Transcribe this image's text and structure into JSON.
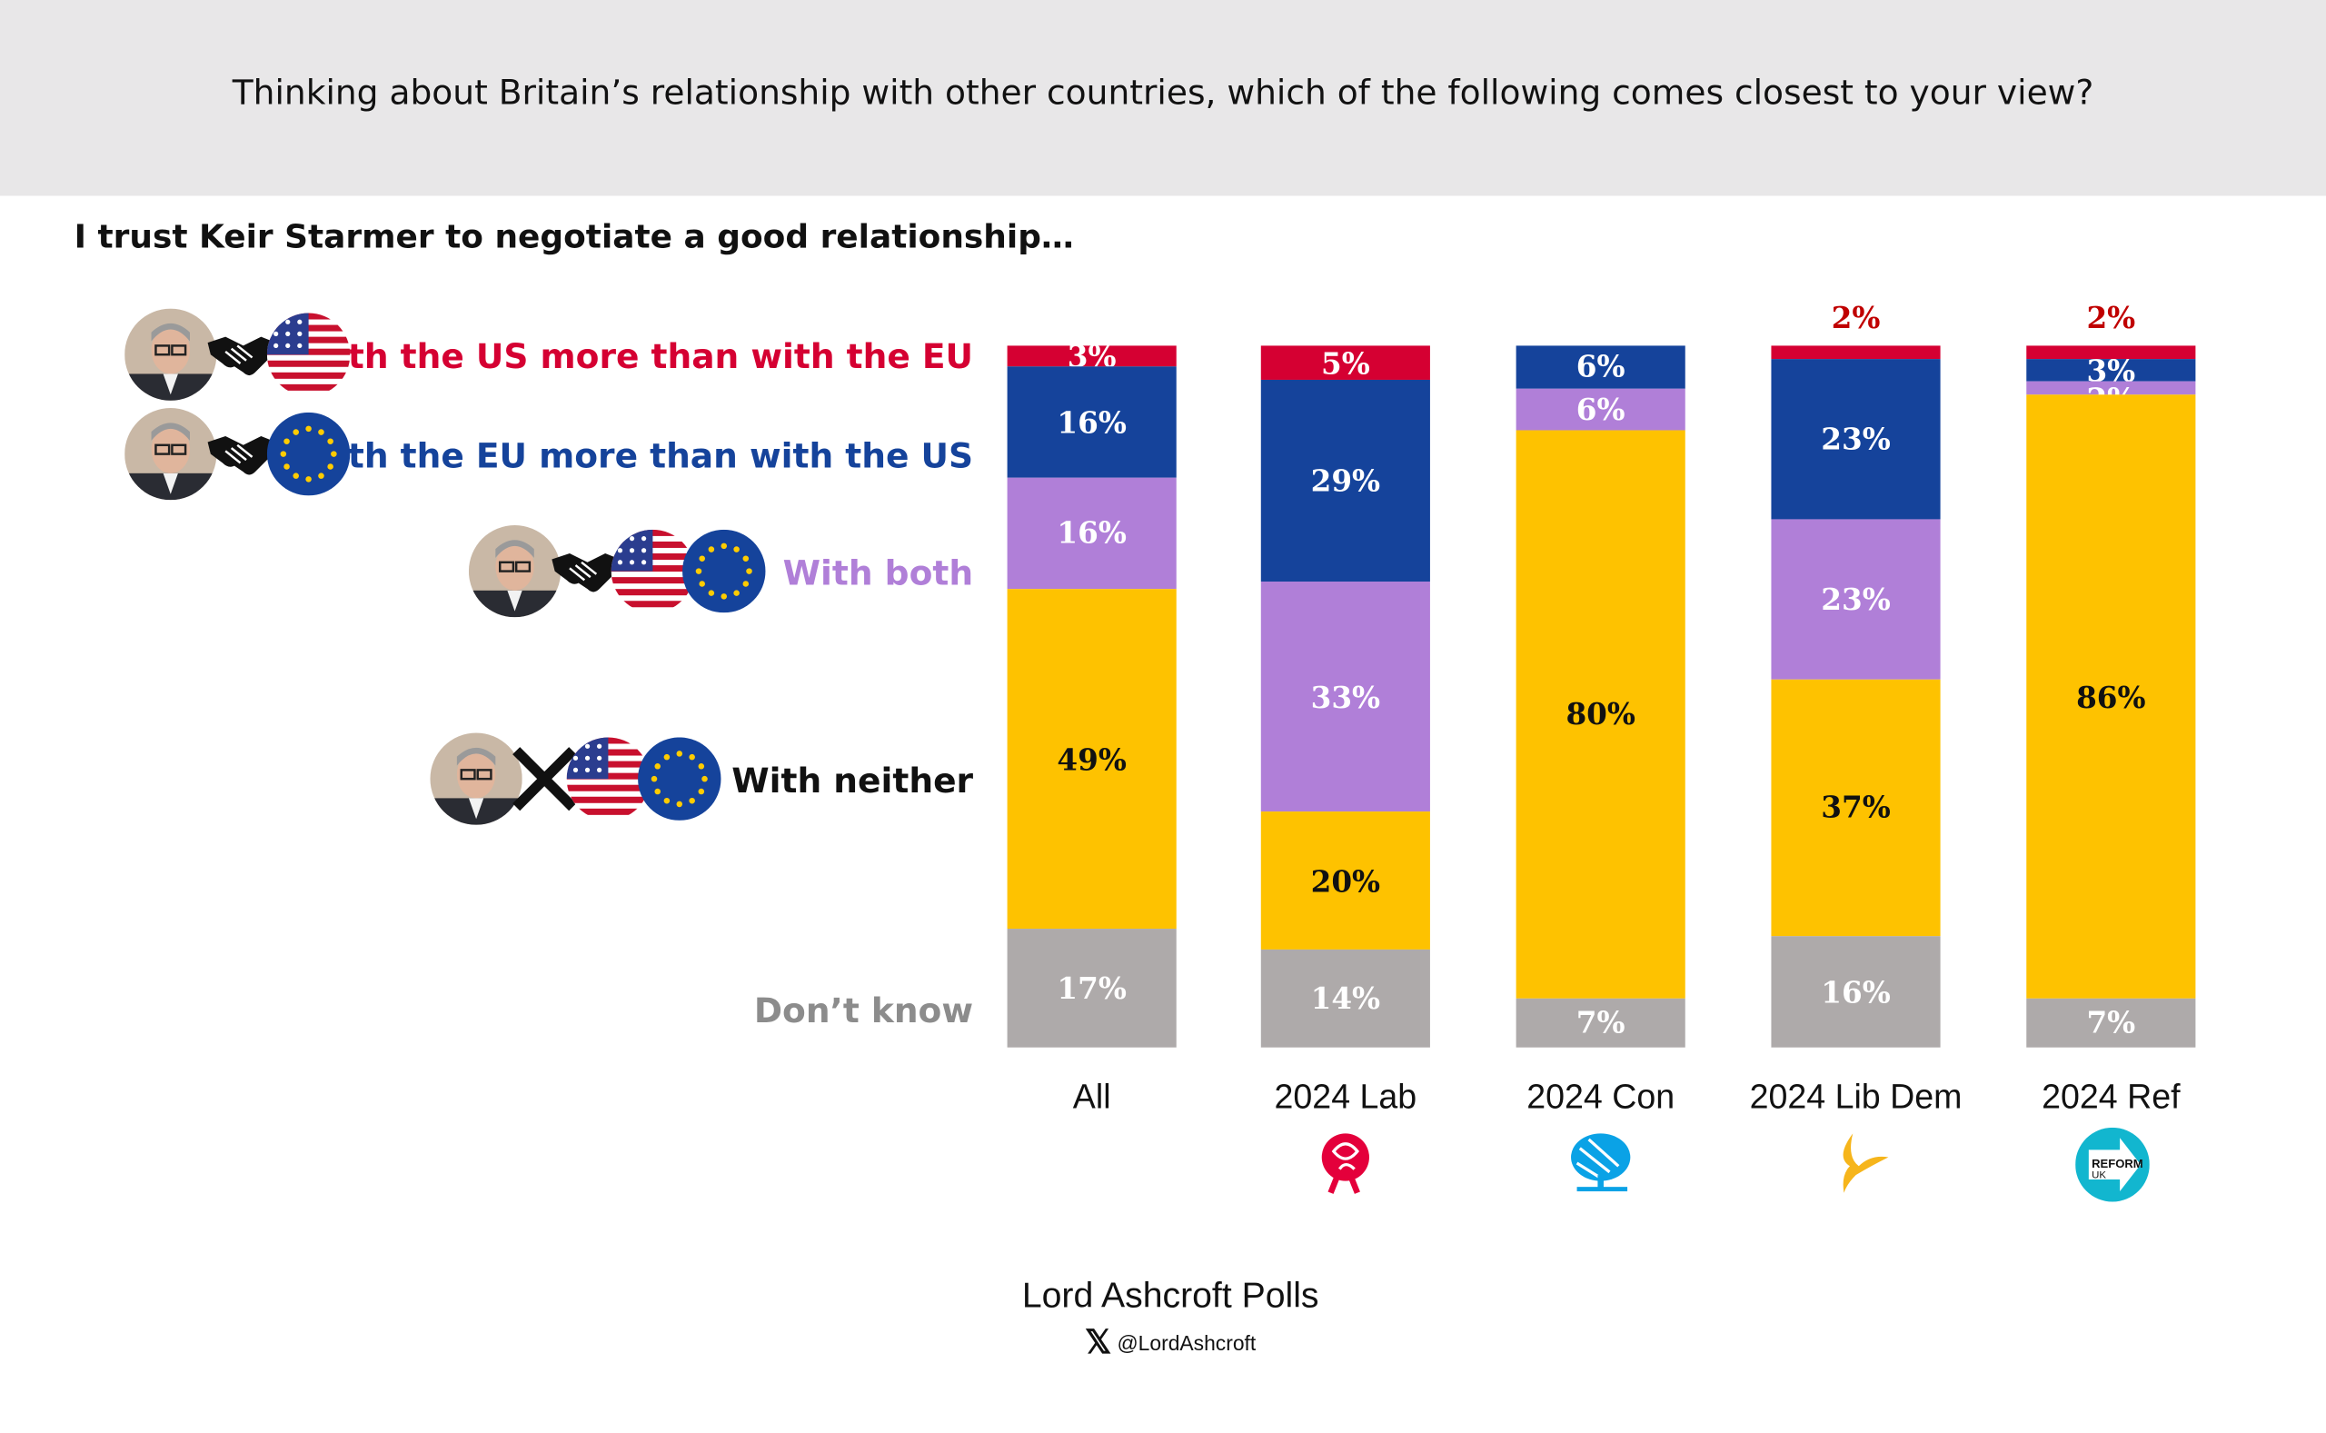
{
  "header": {
    "question": "Thinking about Britain’s relationship with other countries, which of the following comes closest to your view?"
  },
  "subtitle": "I trust Keir Starmer to negotiate a good relationship…",
  "legend": [
    {
      "label": "With the US more than with the EU",
      "color": "#d50032",
      "icons": [
        "portrait-icon",
        "handshake-icon",
        "us-flag-icon"
      ]
    },
    {
      "label": "With the EU more than with the US",
      "color": "#15439b",
      "icons": [
        "portrait-icon",
        "handshake-icon",
        "eu-flag-icon"
      ]
    },
    {
      "label": "With both",
      "color": "#b07fd8",
      "icons": [
        "portrait-icon",
        "handshake-icon",
        "us-flag-icon",
        "eu-flag-icon"
      ]
    },
    {
      "label": "With neither",
      "color": "#111111",
      "icons": [
        "portrait-icon",
        "cross-icon",
        "us-flag-icon",
        "eu-flag-icon"
      ]
    },
    {
      "label": "Don’t know",
      "color": "#8c8c8c",
      "icons": []
    }
  ],
  "chart_data": {
    "type": "bar",
    "stacked": true,
    "orientation": "vertical",
    "percent_stacked": true,
    "title": "I trust Keir Starmer to negotiate a good relationship…",
    "categories": [
      "All",
      "2024 Lab",
      "2024 Con",
      "2024 Lib Dem",
      "2024 Ref"
    ],
    "category_logos": [
      null,
      "labour-rose-icon",
      "conservative-tree-icon",
      "libdem-bird-icon",
      "reform-uk-icon"
    ],
    "series": [
      {
        "name": "With the US more than with the EU",
        "color": "#d50032",
        "values": [
          3,
          5,
          0,
          2,
          2
        ],
        "labels": [
          "3%",
          "5%",
          "",
          "2%",
          "2%"
        ]
      },
      {
        "name": "With the EU more than with the US",
        "color": "#15439b",
        "values": [
          16,
          29,
          6,
          23,
          3
        ],
        "labels": [
          "16%",
          "29%",
          "6%",
          "23%",
          "3%"
        ]
      },
      {
        "name": "With both",
        "color": "#b07fd8",
        "values": [
          16,
          33,
          6,
          23,
          2
        ],
        "labels": [
          "16%",
          "33%",
          "6%",
          "23%",
          "2%"
        ]
      },
      {
        "name": "With neither",
        "color": "#fec200",
        "values": [
          49,
          20,
          80,
          37,
          86
        ],
        "labels": [
          "49%",
          "20%",
          "80%",
          "37%",
          "86%"
        ]
      },
      {
        "name": "Don’t know",
        "color": "#aeaaaa",
        "values": [
          17,
          14,
          7,
          16,
          7
        ],
        "labels": [
          "17%",
          "14%",
          "7%",
          "16%",
          "7%"
        ]
      }
    ],
    "outside_label_color": "#c00000",
    "legend_placement": "left",
    "grid": false
  },
  "footer": {
    "brand": "Lord Ashcroft Polls",
    "handle": "@LordAshcroft"
  }
}
